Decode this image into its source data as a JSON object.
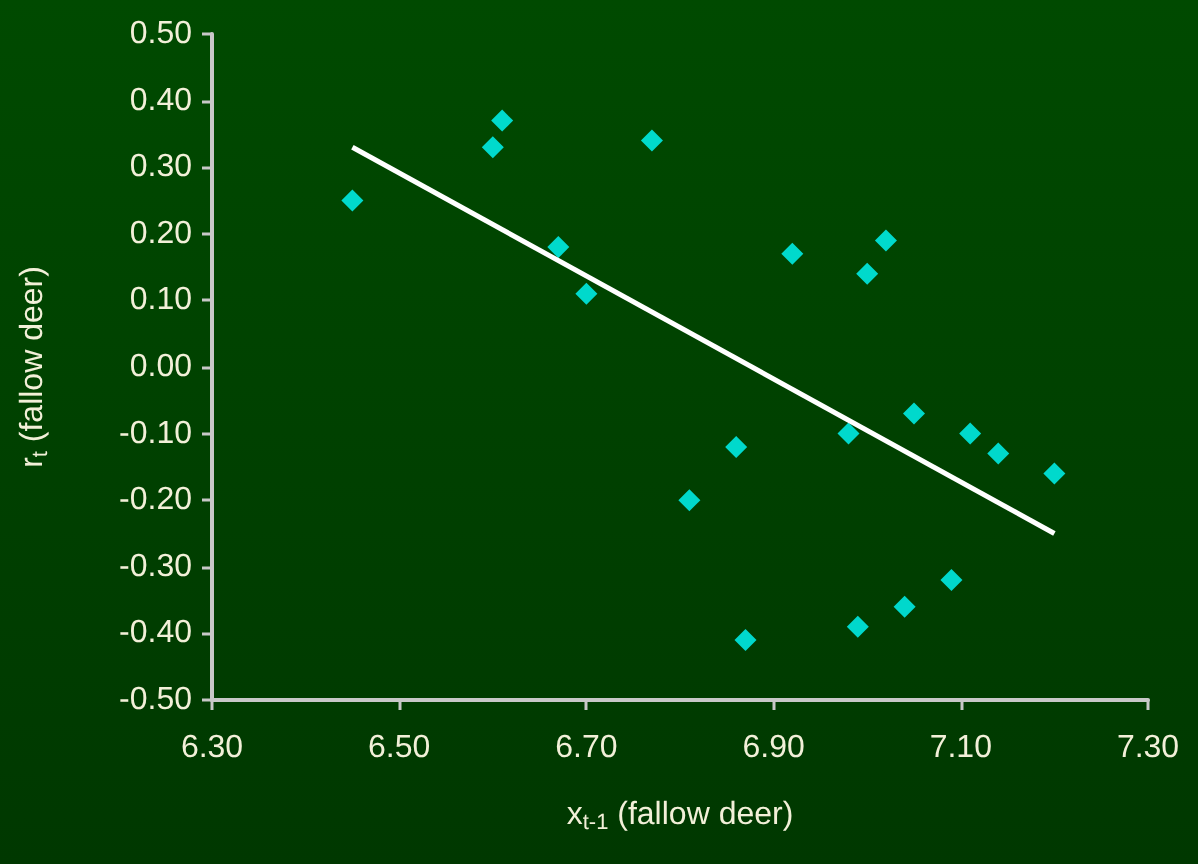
{
  "chart_data": {
    "type": "scatter",
    "xlabel": "x$_{t-1}$ (fallow deer)",
    "ylabel": "r$_{t}$ (fallow deer)",
    "xlim": [
      6.3,
      7.3
    ],
    "xticks": [
      {
        "value": 6.3,
        "label": "6.30"
      },
      {
        "value": 6.5,
        "label": "6.50"
      },
      {
        "value": 6.7,
        "label": "6.70"
      },
      {
        "value": 6.9,
        "label": "6.90"
      },
      {
        "value": 7.1,
        "label": "7.10"
      },
      {
        "value": 7.3,
        "label": "7.30"
      }
    ],
    "ylim": [
      -0.5,
      0.5
    ],
    "yticks": [
      {
        "value": -0.5,
        "label": "-0.50"
      },
      {
        "value": -0.4,
        "label": "-0.40"
      },
      {
        "value": -0.3,
        "label": "-0.30"
      },
      {
        "value": -0.2,
        "label": "-0.20"
      },
      {
        "value": -0.1,
        "label": "-0.10"
      },
      {
        "value": 0,
        "label": "0.00"
      },
      {
        "value": 0.1,
        "label": "0.10"
      },
      {
        "value": 0.2,
        "label": "0.20"
      },
      {
        "value": 0.3,
        "label": "0.30"
      },
      {
        "value": 0.4,
        "label": "0.40"
      },
      {
        "value": 0.5,
        "label": "0.50"
      }
    ],
    "grid": false,
    "marker": "diamond",
    "series": [
      {
        "color": "#00ffff",
        "x": [
          6.45,
          6.6,
          6.61,
          6.67,
          6.7,
          6.77,
          6.81,
          6.86,
          6.87,
          6.92,
          6.98,
          6.99,
          7.0,
          7.02,
          7.04,
          7.05,
          7.09,
          7.11,
          7.14,
          7.2
        ],
        "values": [
          0.25,
          0.33,
          0.37,
          0.18,
          0.11,
          0.34,
          -0.2,
          -0.12,
          -0.41,
          0.17,
          -0.1,
          -0.39,
          0.14,
          0.19,
          -0.36,
          -0.07,
          -0.32,
          -0.1,
          -0.13,
          -0.16
        ]
      },
      {
        "type": "line",
        "color": "#ffffff",
        "marker": "none",
        "x": [
          6.45,
          7.2
        ],
        "values": [
          0.33,
          -0.25
        ]
      }
    ]
  }
}
